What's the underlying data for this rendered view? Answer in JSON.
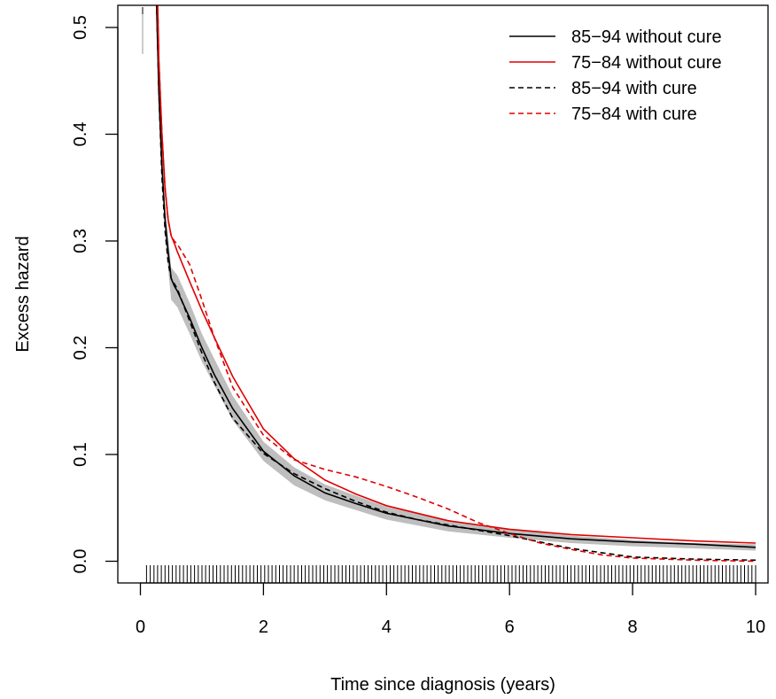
{
  "chart_data": {
    "type": "line",
    "title": "",
    "xlabel": "Time since diagnosis (years)",
    "ylabel": "Excess hazard",
    "xlim": [
      0,
      10
    ],
    "ylim": [
      0,
      0.5
    ],
    "xticks": [
      0,
      2,
      4,
      6,
      8,
      10
    ],
    "xtick_labels": [
      "0",
      "2",
      "4",
      "6",
      "8",
      "10"
    ],
    "yticks": [
      0.0,
      0.1,
      0.2,
      0.3,
      0.4,
      0.5
    ],
    "ytick_labels": [
      "0.0",
      "0.1",
      "0.2",
      "0.3",
      "0.4",
      "0.5"
    ],
    "grid": false,
    "legend_position": "top-right",
    "rug": {
      "color": "#000000",
      "start": 0.1,
      "end": 10,
      "step": 0.06
    },
    "confidence_band": {
      "series_index": 0,
      "color": "#bebebe",
      "x": [
        0.3,
        0.4,
        0.5,
        0.6,
        0.8,
        1.0,
        1.5,
        2.0,
        2.5,
        3.0,
        4.0,
        5.0,
        6.0,
        7.0,
        8.0,
        9.0,
        10.0
      ],
      "lower": [
        0.42,
        0.305,
        0.245,
        0.238,
        0.213,
        0.187,
        0.132,
        0.094,
        0.071,
        0.057,
        0.039,
        0.028,
        0.022,
        0.017,
        0.014,
        0.012,
        0.01
      ],
      "upper": [
        0.46,
        0.335,
        0.275,
        0.268,
        0.242,
        0.213,
        0.155,
        0.112,
        0.088,
        0.072,
        0.051,
        0.038,
        0.03,
        0.024,
        0.02,
        0.017,
        0.016
      ]
    },
    "series": [
      {
        "name": "85−94 without cure",
        "color": "#000000",
        "dash": "solid",
        "x": [
          0.25,
          0.3,
          0.35,
          0.4,
          0.45,
          0.5,
          0.55,
          0.6,
          0.8,
          1.0,
          1.2,
          1.5,
          2.0,
          2.5,
          3.0,
          3.5,
          4.0,
          4.5,
          5.0,
          6.0,
          7.0,
          8.0,
          9.0,
          10.0
        ],
        "y": [
          0.55,
          0.44,
          0.37,
          0.32,
          0.29,
          0.265,
          0.258,
          0.253,
          0.228,
          0.2,
          0.175,
          0.143,
          0.103,
          0.08,
          0.064,
          0.054,
          0.045,
          0.039,
          0.033,
          0.026,
          0.021,
          0.018,
          0.016,
          0.013
        ]
      },
      {
        "name": "75−84 without cure",
        "color": "#df0000",
        "dash": "solid",
        "x": [
          0.27,
          0.3,
          0.35,
          0.4,
          0.45,
          0.5,
          0.55,
          0.6,
          0.8,
          1.0,
          1.2,
          1.5,
          2.0,
          2.5,
          3.0,
          3.5,
          4.0,
          4.5,
          5.0,
          6.0,
          7.0,
          8.0,
          9.0,
          10.0
        ],
        "y": [
          0.55,
          0.47,
          0.4,
          0.35,
          0.32,
          0.305,
          0.298,
          0.29,
          0.262,
          0.235,
          0.21,
          0.173,
          0.124,
          0.096,
          0.076,
          0.063,
          0.052,
          0.045,
          0.038,
          0.03,
          0.025,
          0.022,
          0.019,
          0.017
        ]
      },
      {
        "name": "85−94 with cure",
        "color": "#000000",
        "dash": "dashed",
        "x": [
          0.25,
          0.3,
          0.35,
          0.4,
          0.45,
          0.5,
          0.6,
          0.8,
          1.0,
          1.2,
          1.5,
          2.0,
          2.5,
          3.0,
          3.5,
          4.0,
          4.5,
          5.0,
          5.5,
          6.0,
          6.5,
          7.0,
          7.5,
          8.0,
          8.5,
          9.0,
          10.0
        ],
        "y": [
          0.55,
          0.44,
          0.36,
          0.31,
          0.28,
          0.265,
          0.255,
          0.225,
          0.195,
          0.168,
          0.134,
          0.101,
          0.082,
          0.068,
          0.056,
          0.046,
          0.039,
          0.034,
          0.029,
          0.024,
          0.018,
          0.012,
          0.008,
          0.004,
          0.003,
          0.002,
          0.001
        ]
      },
      {
        "name": "75−84 with cure",
        "color": "#df0000",
        "dash": "dashed",
        "x": [
          0.27,
          0.3,
          0.35,
          0.4,
          0.45,
          0.5,
          0.55,
          0.6,
          0.8,
          1.0,
          1.2,
          1.5,
          2.0,
          2.5,
          3.0,
          3.5,
          4.0,
          4.5,
          5.0,
          5.5,
          6.0,
          6.5,
          7.0,
          7.5,
          8.0,
          8.5,
          9.0,
          10.0
        ],
        "y": [
          0.55,
          0.47,
          0.4,
          0.35,
          0.32,
          0.305,
          0.3,
          0.297,
          0.278,
          0.245,
          0.21,
          0.163,
          0.118,
          0.095,
          0.086,
          0.079,
          0.07,
          0.06,
          0.049,
          0.036,
          0.026,
          0.017,
          0.011,
          0.006,
          0.003,
          0.002,
          0.001,
          0.0
        ]
      }
    ]
  }
}
